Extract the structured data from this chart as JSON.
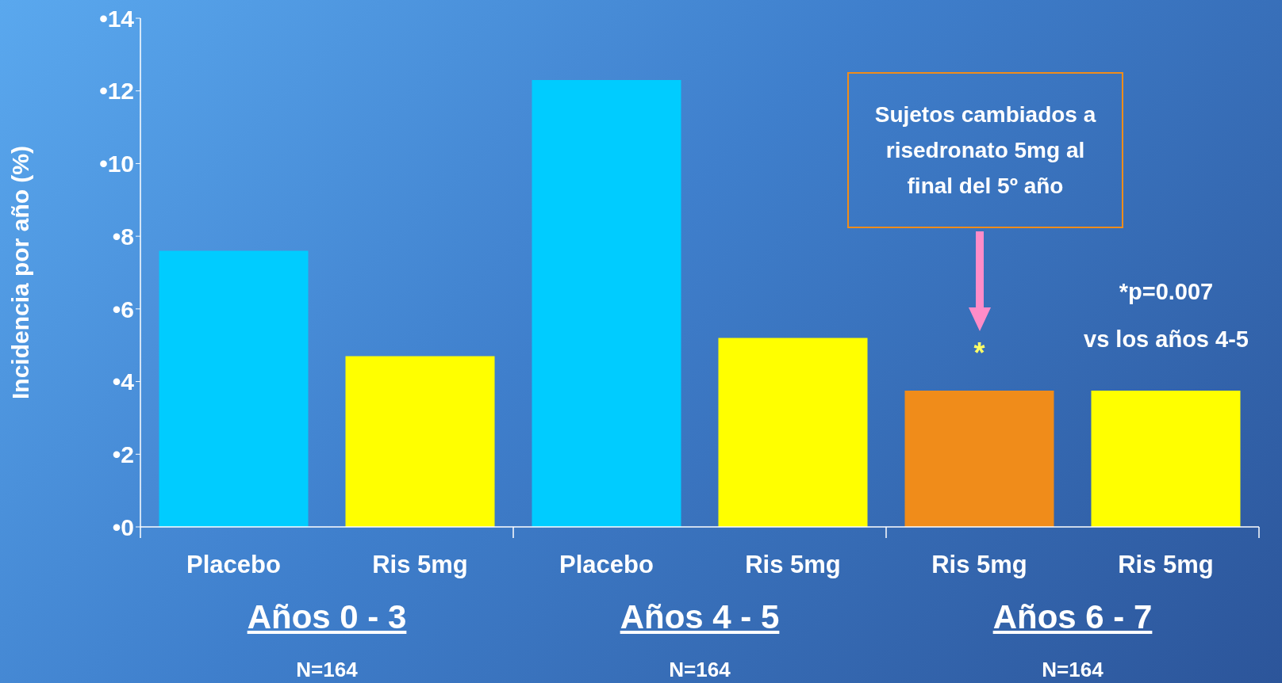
{
  "chart_data": {
    "type": "bar",
    "ylabel": "Incidencia por año (%)",
    "categories": [
      "Placebo",
      "Ris 5mg",
      "Placebo",
      "Ris 5mg",
      "Ris 5mg",
      "Ris 5mg"
    ],
    "values": [
      7.6,
      4.7,
      12.3,
      5.2,
      3.75,
      3.75
    ],
    "colors": [
      "#00ccff",
      "#ffff00",
      "#00ccff",
      "#ffff00",
      "#f08c1a",
      "#ffff00"
    ],
    "ylim": [
      0,
      14
    ],
    "yticks": [
      {
        "value": 0,
        "label": "•0"
      },
      {
        "value": 2,
        "label": "•2"
      },
      {
        "value": 4,
        "label": "•4"
      },
      {
        "value": 6,
        "label": "•6"
      },
      {
        "value": 8,
        "label": "•8"
      },
      {
        "value": 10,
        "label": "•10"
      },
      {
        "value": 12,
        "label": "•12"
      },
      {
        "value": 14,
        "label": "•14"
      }
    ],
    "grid": false,
    "legend": false,
    "annotations": [
      "Años 0 - 3",
      "N=164",
      "Años 4 - 5",
      "N=164",
      "Años 6 - 7",
      "N=164",
      "Sujetos cambiados a risedronato 5mg al final del 5º año",
      "*",
      "*p=0.007",
      "vs los años 4-5"
    ]
  }
}
